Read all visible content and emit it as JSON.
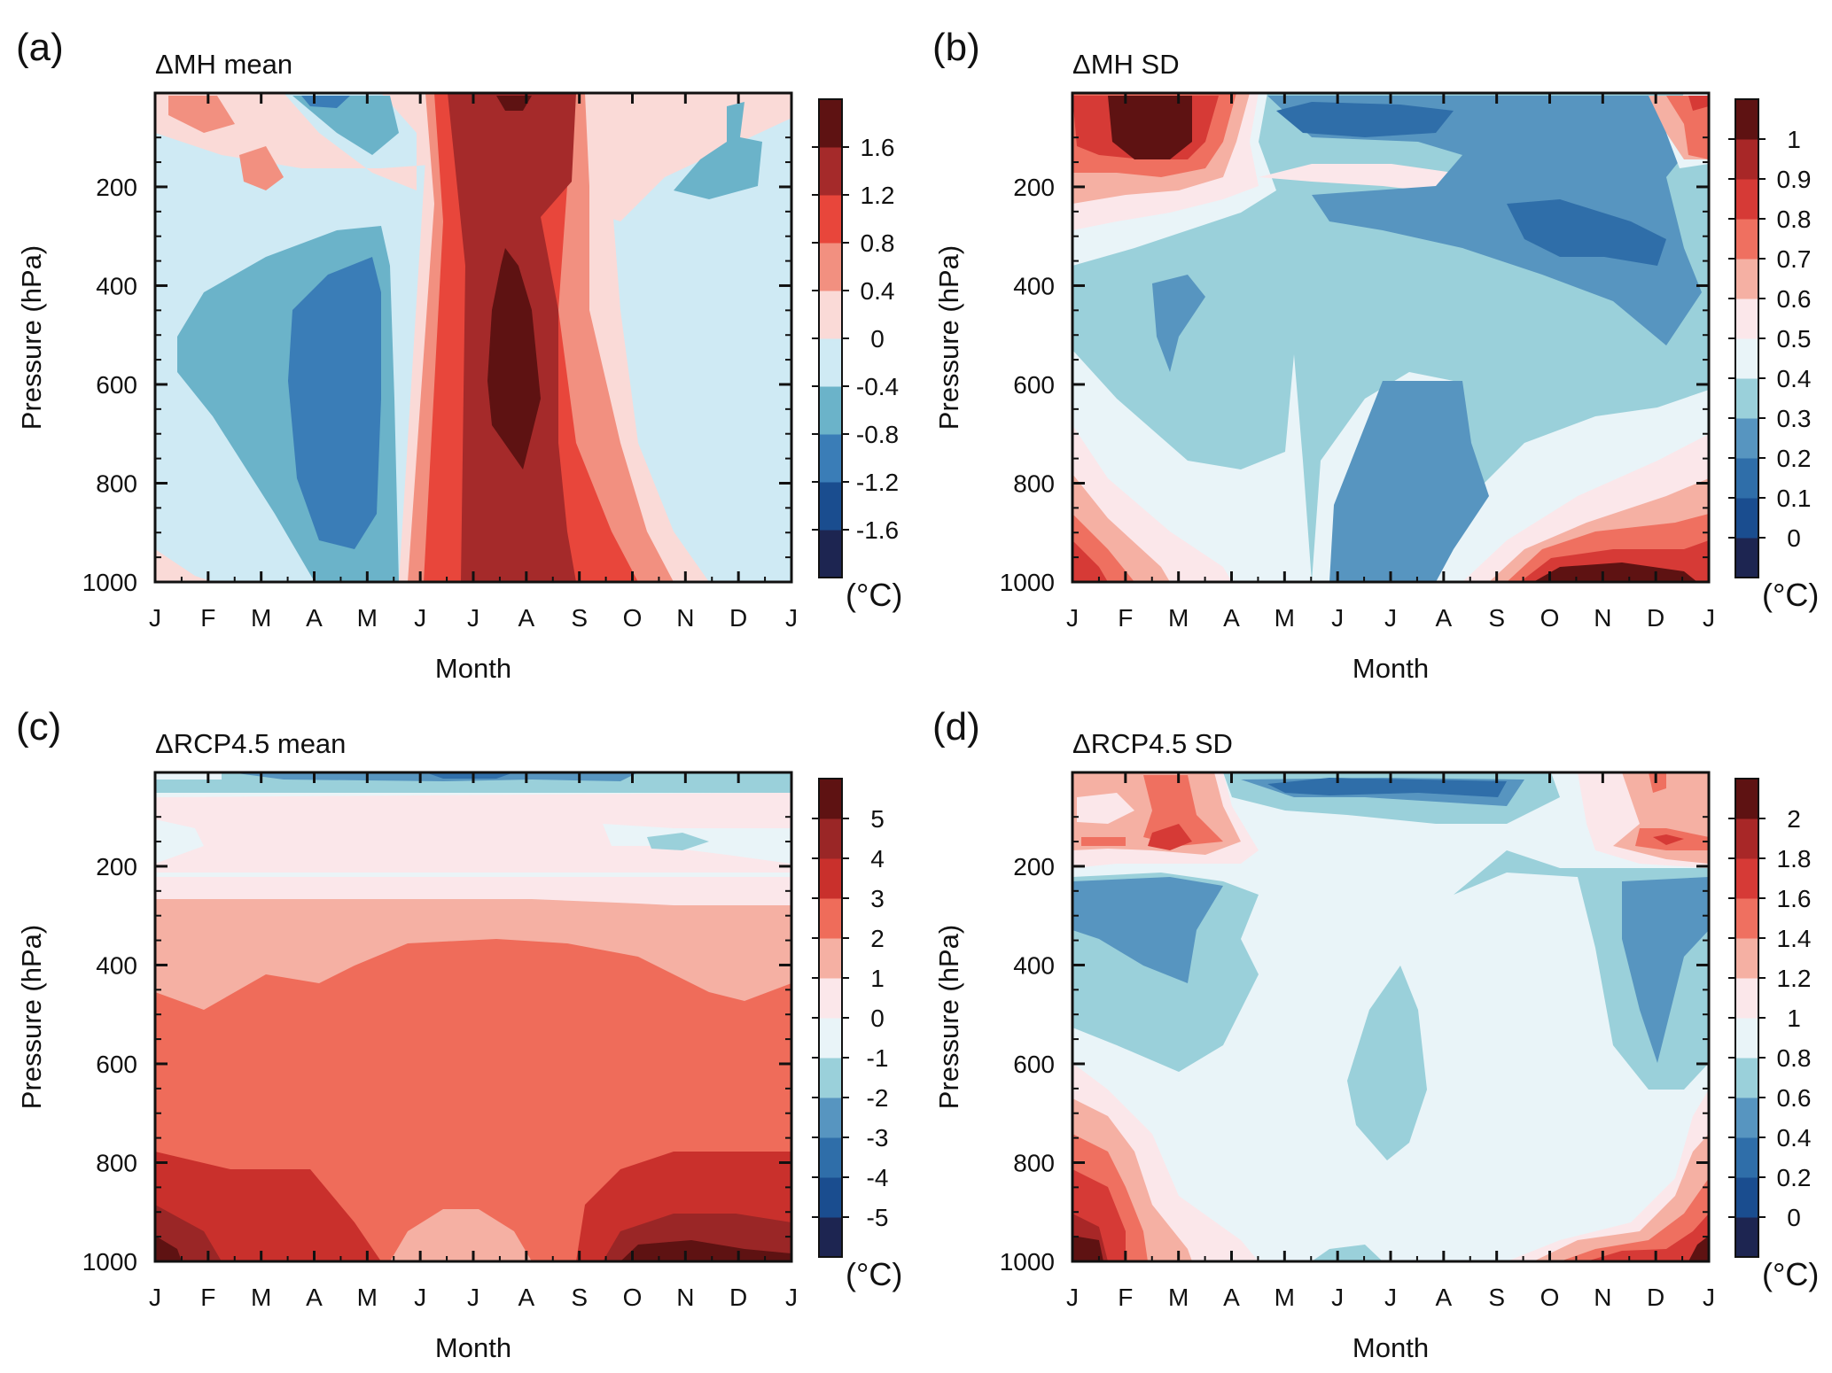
{
  "figure": {
    "month_axis": [
      "J",
      "F",
      "M",
      "A",
      "M",
      "J",
      "J",
      "A",
      "S",
      "O",
      "N",
      "D",
      "J"
    ],
    "pressure_axis": [
      200,
      400,
      600,
      800,
      1000
    ],
    "ylabel": "Pressure (hPa)",
    "xlabel": "Month",
    "unit_label": "(°C)"
  },
  "chart_data": [
    {
      "type": "heatmap",
      "panel_label": "(a)",
      "title": "ΔMH mean",
      "xlabel": "Month",
      "ylabel": "Pressure (hPa)",
      "x_ticks": [
        "J",
        "F",
        "M",
        "A",
        "M",
        "J",
        "J",
        "A",
        "S",
        "O",
        "N",
        "D",
        "J"
      ],
      "y_ticks": [
        200,
        400,
        600,
        800,
        1000
      ],
      "ylim": [
        10,
        1000
      ],
      "colorbar": {
        "unit": "(°C)",
        "levels": [
          -1.6,
          -1.2,
          -0.8,
          -0.4,
          0,
          0.4,
          0.8,
          1.2,
          1.6
        ],
        "labels": [
          "-1.6",
          "-1.2",
          "-0.8",
          "-0.4",
          "0",
          "0.4",
          "0.8",
          "1.2",
          "1.6"
        ],
        "colors": [
          "#1d2551",
          "#1a4d8f",
          "#3a7db7",
          "#6bb3c9",
          "#cfeaf4",
          "#fadad7",
          "#f29080",
          "#e8463b",
          "#a52a2a",
          "#5e1212"
        ]
      }
    },
    {
      "type": "heatmap",
      "panel_label": "(b)",
      "title": "ΔMH SD",
      "xlabel": "Month",
      "ylabel": "Pressure (hPa)",
      "x_ticks": [
        "J",
        "F",
        "M",
        "A",
        "M",
        "J",
        "J",
        "A",
        "S",
        "O",
        "N",
        "D",
        "J"
      ],
      "y_ticks": [
        200,
        400,
        600,
        800,
        1000
      ],
      "ylim": [
        10,
        1000
      ],
      "colorbar": {
        "unit": "(°C)",
        "levels": [
          0,
          0.1,
          0.2,
          0.3,
          0.4,
          0.5,
          0.6,
          0.7,
          0.8,
          0.9,
          1
        ],
        "labels": [
          "0",
          "0.1",
          "0.2",
          "0.3",
          "0.4",
          "0.5",
          "0.6",
          "0.7",
          "0.8",
          "0.9",
          "1"
        ],
        "colors": [
          "#1d2551",
          "#1a4d8f",
          "#2f6ea9",
          "#5795c0",
          "#9ad0da",
          "#e9f4f8",
          "#fbe7ea",
          "#f5b0a3",
          "#ef7060",
          "#d63a36",
          "#a82727",
          "#5e1212"
        ]
      }
    },
    {
      "type": "heatmap",
      "panel_label": "(c)",
      "title": "ΔRCP4.5  mean",
      "xlabel": "Month",
      "ylabel": "Pressure (hPa)",
      "x_ticks": [
        "J",
        "F",
        "M",
        "A",
        "M",
        "J",
        "J",
        "A",
        "S",
        "O",
        "N",
        "D",
        "J"
      ],
      "y_ticks": [
        200,
        400,
        600,
        800,
        1000
      ],
      "ylim": [
        10,
        1000
      ],
      "colorbar": {
        "unit": "(°C)",
        "levels": [
          -5,
          -4,
          -3,
          -2,
          -1,
          0,
          1,
          2,
          3,
          4,
          5
        ],
        "labels": [
          "-5",
          "-4",
          "-3",
          "-2",
          "-1",
          "0",
          "1",
          "2",
          "3",
          "4",
          "5"
        ],
        "colors": [
          "#1d2551",
          "#1a4d8f",
          "#2f6ea9",
          "#5795c0",
          "#9ad0da",
          "#e9f4f8",
          "#fbe7ea",
          "#f5b0a3",
          "#ef6c5a",
          "#c9302c",
          "#9a2626",
          "#5e1212"
        ]
      }
    },
    {
      "type": "heatmap",
      "panel_label": "(d)",
      "title": "ΔRCP4.5 SD",
      "xlabel": "Month",
      "ylabel": "Pressure (hPa)",
      "x_ticks": [
        "J",
        "F",
        "M",
        "A",
        "M",
        "J",
        "J",
        "A",
        "S",
        "O",
        "N",
        "D",
        "J"
      ],
      "y_ticks": [
        200,
        400,
        600,
        800,
        1000
      ],
      "ylim": [
        10,
        1000
      ],
      "colorbar": {
        "unit": "(°C)",
        "levels": [
          0,
          0.2,
          0.4,
          0.6,
          0.8,
          1,
          1.2,
          1.4,
          1.6,
          1.8,
          2
        ],
        "labels": [
          "0",
          "0.2",
          "0.4",
          "0.6",
          "0.8",
          "1",
          "1.2",
          "1.4",
          "1.6",
          "1.8",
          "2"
        ],
        "colors": [
          "#1d2551",
          "#1a4d8f",
          "#2f6ea9",
          "#5795c0",
          "#9ad0da",
          "#e9f4f8",
          "#fbe7ea",
          "#f5b0a3",
          "#ef7060",
          "#d63a36",
          "#a82727",
          "#5e1212"
        ]
      }
    }
  ]
}
